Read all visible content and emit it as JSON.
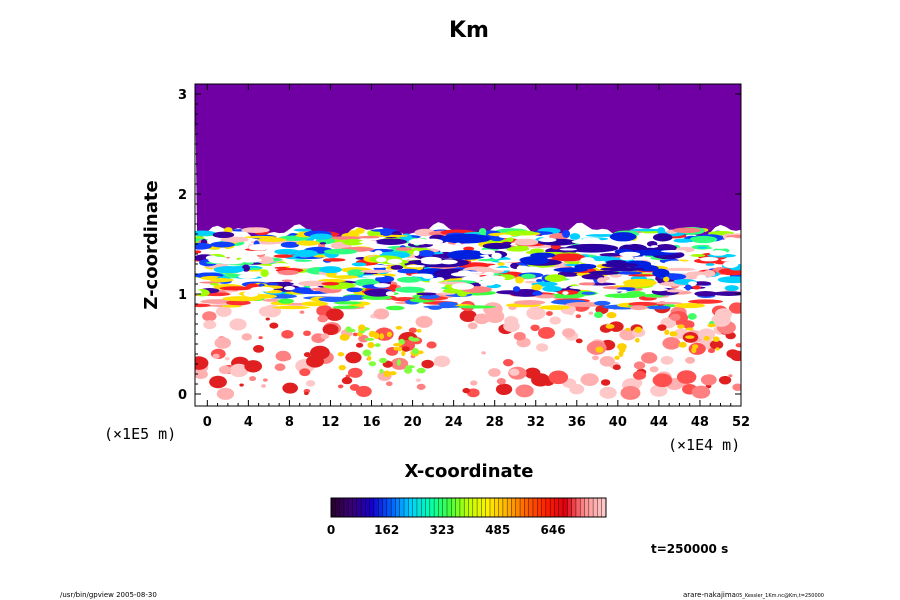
{
  "chart_data": {
    "type": "heatmap",
    "title": "Km",
    "xlabel": "X-coordinate",
    "ylabel": "Z-coordinate",
    "x_unit": "(×1E4 m)",
    "y_unit": "(×1E5 m)",
    "x_ticks": [
      0,
      4,
      8,
      12,
      16,
      20,
      24,
      28,
      32,
      36,
      40,
      44,
      48,
      52
    ],
    "y_ticks": [
      0,
      1,
      2,
      3
    ],
    "xlim": [
      -1.2,
      52
    ],
    "ylim": [
      -0.12,
      3.1
    ],
    "colorbar": {
      "ticks": [
        0,
        162,
        323,
        485,
        646
      ],
      "range": [
        0,
        800
      ],
      "colormap": [
        "#2a0033",
        "#3a007a",
        "#1400cc",
        "#0060ff",
        "#00d0ff",
        "#00ffb0",
        "#40ff40",
        "#c0ff00",
        "#fff000",
        "#ffb000",
        "#ff6000",
        "#ff2000",
        "#e00010",
        "#ff9090",
        "#ffc8c8"
      ]
    },
    "fields": {
      "upper_region": {
        "z_from": 1.62,
        "z_to": 3.1,
        "value": 20,
        "color": "#7000a4"
      },
      "mixed_layer_top": 1.62,
      "background_color": "#ffffff"
    },
    "time_label": "t=250000 s"
  },
  "footer": {
    "left": "/usr/bin/gpview 2005-08-30",
    "right_main": "arare-nakajima",
    "right_sub": "05_Kessler_1Km.nc@Km,t=250000"
  }
}
